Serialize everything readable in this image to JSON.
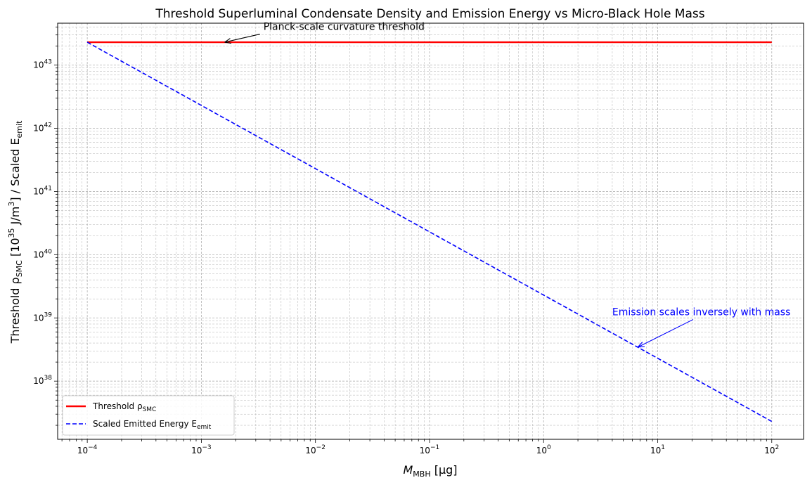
{
  "chart_data": {
    "type": "line",
    "title": "Threshold Superluminal Condensate Density and Emission Energy vs Micro-Black Hole Mass",
    "xlabel": {
      "main": "M",
      "sub": "MBH",
      "rest": " [μg]"
    },
    "ylabel": {
      "main": "Threshold ρ",
      "sub": "SMC",
      "mid": " [10",
      "sup": "35",
      "mid2": " J/m",
      "sup2": "3",
      "rest": "] / Scaled E",
      "sub2": "emit"
    },
    "x_scale": "log",
    "y_scale": "log",
    "xlim": [
      5.5e-05,
      190
    ],
    "ylim": [
      1.2e+37,
      4.6e+43
    ],
    "x_ticks": [
      {
        "value": 0.0001,
        "mantissa": "10",
        "exp": "−4"
      },
      {
        "value": 0.001,
        "mantissa": "10",
        "exp": "−3"
      },
      {
        "value": 0.01,
        "mantissa": "10",
        "exp": "−2"
      },
      {
        "value": 0.1,
        "mantissa": "10",
        "exp": "−1"
      },
      {
        "value": 1.0,
        "mantissa": "10",
        "exp": "0"
      },
      {
        "value": 10.0,
        "mantissa": "10",
        "exp": "1"
      },
      {
        "value": 100.0,
        "mantissa": "10",
        "exp": "2"
      }
    ],
    "y_ticks": [
      {
        "value": 1e+38,
        "mantissa": "10",
        "exp": "38"
      },
      {
        "value": 1e+39,
        "mantissa": "10",
        "exp": "39"
      },
      {
        "value": 1e+40,
        "mantissa": "10",
        "exp": "40"
      },
      {
        "value": 1e+41,
        "mantissa": "10",
        "exp": "41"
      },
      {
        "value": 1e+42,
        "mantissa": "10",
        "exp": "42"
      },
      {
        "value": 1e+43,
        "mantissa": "10",
        "exp": "43"
      }
    ],
    "grid": true,
    "legend_position": "lower-left",
    "series": [
      {
        "name": "Threshold ρSMC",
        "legend": {
          "main": "Threshold ρ",
          "sub": "SMC"
        },
        "color": "#ff0000",
        "style": "solid",
        "x": [
          0.0001,
          100
        ],
        "y": [
          2.3e+43,
          2.3e+43
        ]
      },
      {
        "name": "Scaled Emitted Energy Eemit",
        "legend": {
          "main": "Scaled Emitted Energy E",
          "sub": "emit"
        },
        "color": "#0000ff",
        "style": "dashed",
        "x": [
          0.0001,
          100
        ],
        "y": [
          2.3e+43,
          2.3e+37
        ]
      }
    ],
    "annotations": [
      {
        "text": "Planck-scale curvature threshold",
        "color": "#000000",
        "text_x": 0.0035,
        "text_y": 3.6e+43,
        "point_x": 0.0016,
        "point_y": 2.3e+43
      },
      {
        "text": "Emission scales inversely with mass",
        "color": "#0000ff",
        "text_x": 4,
        "text_y": 1.1e+39,
        "point_x": 6.7,
        "point_y": 3.45e+38
      }
    ]
  }
}
